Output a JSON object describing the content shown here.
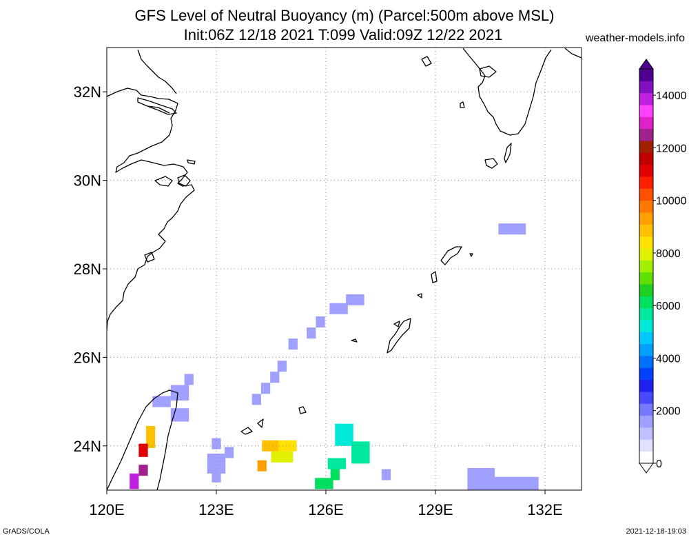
{
  "header": {
    "title_line1": "GFS Level of Neutral Buoyancy (m) (Parcel:500m above MSL)",
    "title_line2": "Init:06Z 12/18 2021 T:099 Valid:09Z 12/22 2021",
    "site": "weather-models.info"
  },
  "footer": {
    "left": "GrADS/COLA",
    "right": "2021-12-18-19:03"
  },
  "map": {
    "lon_min": 120.0,
    "lon_max": 133.0,
    "lat_min": 23.0,
    "lat_max": 33.0,
    "x_ticks": [
      {
        "lon": 120,
        "label": "120E"
      },
      {
        "lon": 123,
        "label": "123E"
      },
      {
        "lon": 126,
        "label": "126E"
      },
      {
        "lon": 129,
        "label": "129E"
      },
      {
        "lon": 132,
        "label": "132E"
      }
    ],
    "y_ticks": [
      {
        "lat": 24,
        "label": "24N"
      },
      {
        "lat": 26,
        "label": "26N"
      },
      {
        "lat": 28,
        "label": "28N"
      },
      {
        "lat": 30,
        "label": "30N"
      },
      {
        "lat": 32,
        "label": "32N"
      }
    ],
    "cells": [
      {
        "lon": 131.1,
        "lat": 28.9,
        "w": 0.75,
        "h": 0.25,
        "v": 1700
      },
      {
        "lon": 126.8,
        "lat": 27.3,
        "w": 0.5,
        "h": 0.25,
        "v": 1700
      },
      {
        "lon": 126.35,
        "lat": 27.1,
        "w": 0.5,
        "h": 0.25,
        "v": 1700
      },
      {
        "lon": 125.85,
        "lat": 26.8,
        "w": 0.25,
        "h": 0.25,
        "v": 1700
      },
      {
        "lon": 125.6,
        "lat": 26.55,
        "w": 0.25,
        "h": 0.25,
        "v": 1700
      },
      {
        "lon": 125.1,
        "lat": 26.3,
        "w": 0.25,
        "h": 0.25,
        "v": 1700
      },
      {
        "lon": 124.8,
        "lat": 25.8,
        "w": 0.25,
        "h": 0.25,
        "v": 1700
      },
      {
        "lon": 124.6,
        "lat": 25.55,
        "w": 0.25,
        "h": 0.25,
        "v": 1700
      },
      {
        "lon": 124.35,
        "lat": 25.3,
        "w": 0.25,
        "h": 0.25,
        "v": 1700
      },
      {
        "lon": 124.1,
        "lat": 25.05,
        "w": 0.25,
        "h": 0.25,
        "v": 1700
      },
      {
        "lon": 122.25,
        "lat": 25.5,
        "w": 0.25,
        "h": 0.25,
        "v": 1500
      },
      {
        "lon": 122.0,
        "lat": 25.2,
        "w": 0.5,
        "h": 0.35,
        "v": 1600
      },
      {
        "lon": 121.5,
        "lat": 25.0,
        "w": 0.5,
        "h": 0.25,
        "v": 1700
      },
      {
        "lon": 122.0,
        "lat": 24.7,
        "w": 0.5,
        "h": 0.3,
        "v": 1650
      },
      {
        "lon": 123.0,
        "lat": 24.05,
        "w": 0.25,
        "h": 0.25,
        "v": 1700
      },
      {
        "lon": 123.0,
        "lat": 23.6,
        "w": 0.5,
        "h": 0.45,
        "v": 1700
      },
      {
        "lon": 123.35,
        "lat": 23.85,
        "w": 0.25,
        "h": 0.25,
        "v": 1700
      },
      {
        "lon": 123.0,
        "lat": 23.3,
        "w": 0.25,
        "h": 0.25,
        "v": 1700
      },
      {
        "lon": 124.5,
        "lat": 24.0,
        "w": 0.5,
        "h": 0.25,
        "v": 8800
      },
      {
        "lon": 124.95,
        "lat": 24.0,
        "w": 0.5,
        "h": 0.25,
        "v": 8400
      },
      {
        "lon": 124.8,
        "lat": 23.75,
        "w": 0.6,
        "h": 0.25,
        "v": 7800
      },
      {
        "lon": 124.25,
        "lat": 23.55,
        "w": 0.25,
        "h": 0.25,
        "v": 9500
      },
      {
        "lon": 126.5,
        "lat": 24.25,
        "w": 0.5,
        "h": 0.5,
        "v": 5200
      },
      {
        "lon": 126.95,
        "lat": 23.85,
        "w": 0.5,
        "h": 0.5,
        "v": 5800
      },
      {
        "lon": 126.3,
        "lat": 23.6,
        "w": 0.5,
        "h": 0.25,
        "v": 5600
      },
      {
        "lon": 126.25,
        "lat": 23.35,
        "w": 0.25,
        "h": 0.25,
        "v": 6000
      },
      {
        "lon": 125.95,
        "lat": 23.15,
        "w": 0.5,
        "h": 0.25,
        "v": 6200
      },
      {
        "lon": 127.65,
        "lat": 23.35,
        "w": 0.25,
        "h": 0.25,
        "v": 1700
      },
      {
        "lon": 130.25,
        "lat": 23.25,
        "w": 0.75,
        "h": 0.5,
        "v": 1700
      },
      {
        "lon": 131.2,
        "lat": 23.15,
        "w": 1.25,
        "h": 0.3,
        "v": 1700
      },
      {
        "lon": 121.2,
        "lat": 24.2,
        "w": 0.25,
        "h": 0.5,
        "v": 9000
      },
      {
        "lon": 121.0,
        "lat": 23.9,
        "w": 0.25,
        "h": 0.3,
        "v": 11000
      },
      {
        "lon": 121.0,
        "lat": 23.45,
        "w": 0.25,
        "h": 0.25,
        "v": 12600
      },
      {
        "lon": 120.75,
        "lat": 23.2,
        "w": 0.25,
        "h": 0.35,
        "v": 13800
      }
    ]
  },
  "colorbar": {
    "max": 15000,
    "labels": [
      "0",
      "2000",
      "4000",
      "6000",
      "8000",
      "10000",
      "12000",
      "14000"
    ],
    "colors": [
      "#ffffff",
      "#e0e0ff",
      "#c0c0ff",
      "#a0a0ff",
      "#7878ff",
      "#4848ff",
      "#2020f0",
      "#0040ff",
      "#0070ff",
      "#00a0ff",
      "#00c8ff",
      "#00e8d8",
      "#00e8a0",
      "#00e060",
      "#20d020",
      "#60e000",
      "#a0f000",
      "#e0f000",
      "#ffe000",
      "#ffc000",
      "#ffa000",
      "#ff7800",
      "#ff5000",
      "#ff2000",
      "#e00000",
      "#c00000",
      "#a02000",
      "#a0208c",
      "#e020c8",
      "#ff40ff",
      "#c020e0",
      "#8010c0",
      "#500090"
    ]
  }
}
